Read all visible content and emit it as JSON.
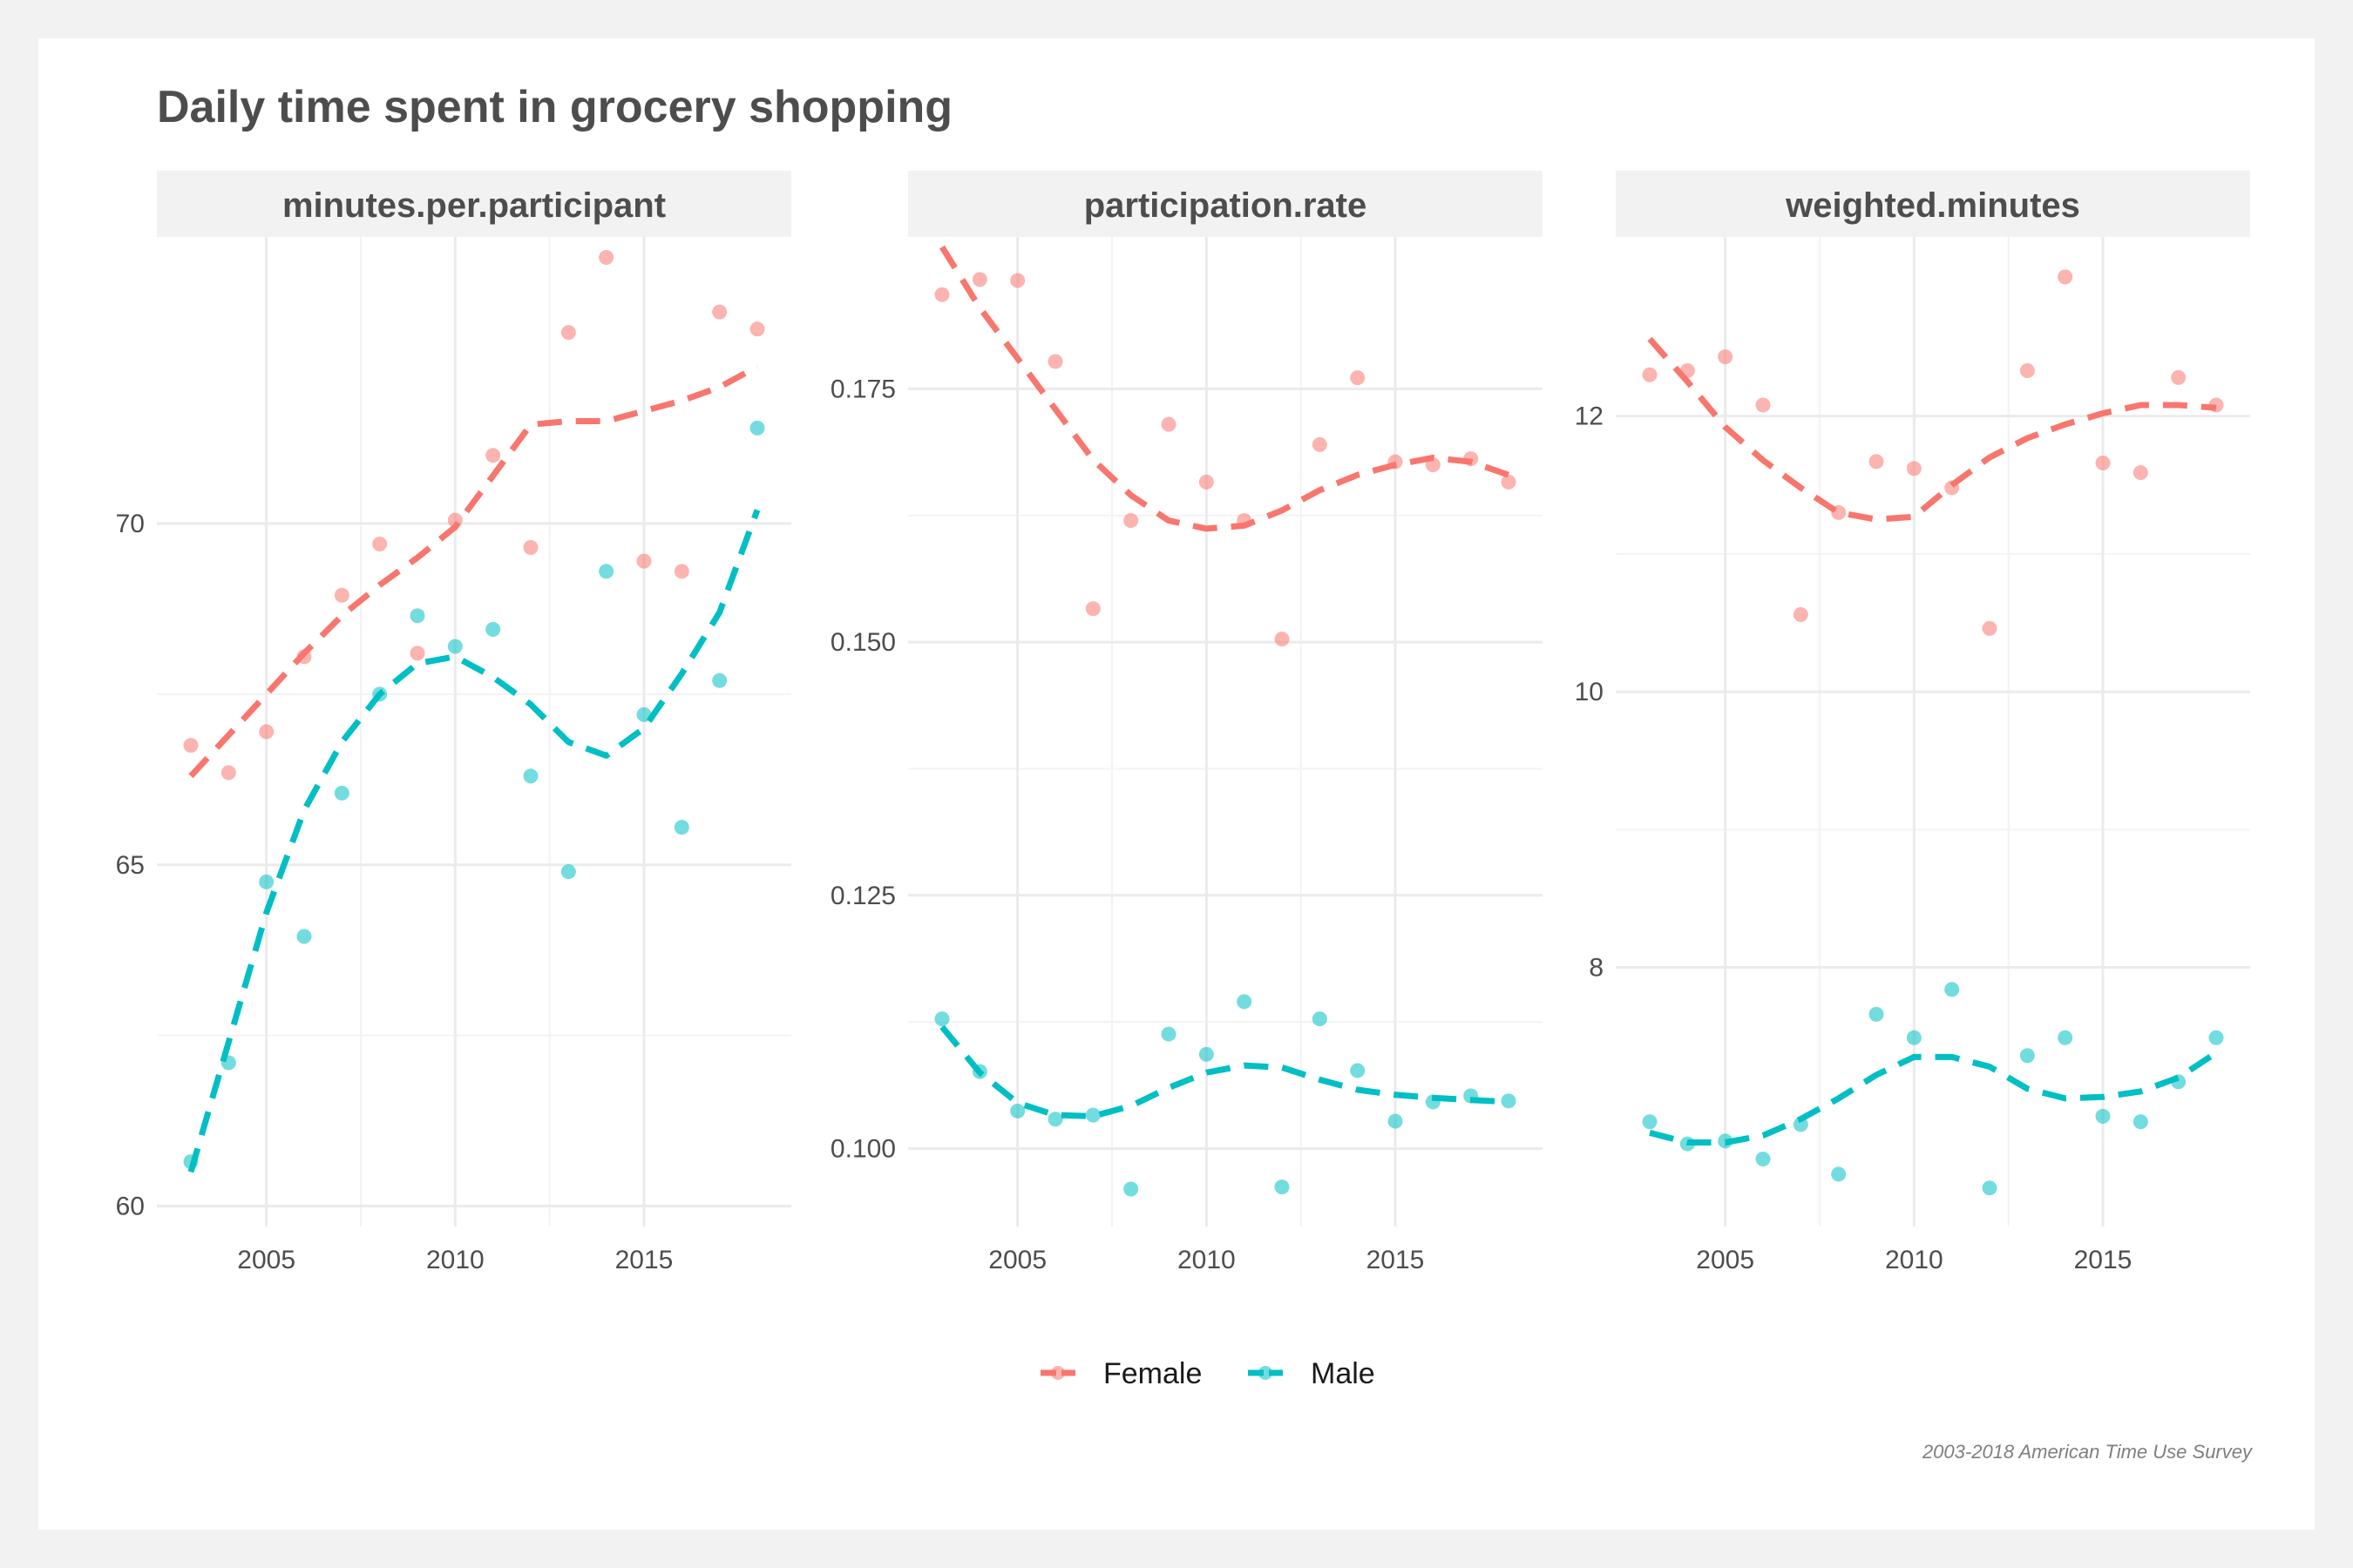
{
  "page": {
    "title": "Daily time spent in grocery shopping",
    "caption": "2003-2018 American Time Use Survey"
  },
  "colors": {
    "Female": "#f8766d",
    "Male": "#00bfc4",
    "strip_bg": "#f2f2f2",
    "grid": "#ebebeb"
  },
  "legend": [
    {
      "name": "Female",
      "color": "#f8766d"
    },
    {
      "name": "Male",
      "color": "#00bfc4"
    }
  ],
  "chart_data": [
    {
      "type": "scatter",
      "panel": "minutes.per.participant",
      "x_ticks": [
        2005,
        2010,
        2015
      ],
      "y_ticks": [
        60,
        65,
        70
      ],
      "xlim": [
        2002.1,
        2018.9
      ],
      "ylim": [
        59.7,
        74.2
      ],
      "x": [
        2003,
        2004,
        2005,
        2006,
        2007,
        2008,
        2009,
        2010,
        2011,
        2012,
        2013,
        2014,
        2015,
        2016,
        2017,
        2018
      ],
      "series": [
        {
          "name": "Female",
          "values": [
            66.75,
            66.35,
            66.95,
            68.05,
            68.95,
            69.7,
            68.1,
            70.05,
            71.0,
            69.65,
            72.8,
            73.9,
            69.45,
            69.3,
            73.1,
            72.85
          ],
          "trend": [
            66.3,
            66.9,
            67.5,
            68.1,
            68.65,
            69.1,
            69.5,
            69.95,
            70.7,
            71.45,
            71.5,
            71.5,
            71.65,
            71.8,
            72.0,
            72.3
          ]
        },
        {
          "name": "Male",
          "values": [
            60.65,
            62.1,
            64.75,
            63.95,
            66.05,
            67.5,
            68.65,
            68.2,
            68.45,
            66.3,
            64.9,
            69.3,
            67.2,
            65.55,
            67.7,
            71.4
          ],
          "trend": [
            60.5,
            62.4,
            64.3,
            65.8,
            66.8,
            67.5,
            67.95,
            68.05,
            67.75,
            67.35,
            66.8,
            66.6,
            67.0,
            67.8,
            68.7,
            70.2
          ]
        }
      ]
    },
    {
      "type": "scatter",
      "panel": "participation.rate",
      "x_ticks": [
        2005,
        2010,
        2015
      ],
      "y_ticks": [
        0.1,
        0.125,
        0.15,
        0.175
      ],
      "y_tick_labels": [
        "0.100",
        "0.125",
        "0.150",
        "0.175"
      ],
      "xlim": [
        2002.1,
        2018.9
      ],
      "ylim": [
        0.0923,
        0.19
      ],
      "x": [
        2003,
        2004,
        2005,
        2006,
        2007,
        2008,
        2009,
        2010,
        2011,
        2012,
        2013,
        2014,
        2015,
        2016,
        2017,
        2018
      ],
      "series": [
        {
          "name": "Female",
          "values": [
            0.1843,
            0.1858,
            0.1857,
            0.1777,
            0.1533,
            0.162,
            0.1715,
            0.1658,
            0.162,
            0.1503,
            0.1695,
            0.1761,
            0.1678,
            0.1675,
            0.1681,
            0.1658
          ],
          "trend": [
            0.189,
            0.183,
            0.178,
            0.173,
            0.168,
            0.1645,
            0.162,
            0.1612,
            0.1615,
            0.163,
            0.165,
            0.1665,
            0.1675,
            0.1682,
            0.1678,
            0.1665
          ]
        },
        {
          "name": "Male",
          "values": [
            0.1128,
            0.1076,
            0.1037,
            0.1029,
            0.1033,
            0.096,
            0.1113,
            0.1093,
            0.1145,
            0.0962,
            0.1128,
            0.1077,
            0.1027,
            0.1046,
            0.1052,
            0.1047
          ],
          "trend": [
            0.112,
            0.1075,
            0.1045,
            0.1033,
            0.1032,
            0.1042,
            0.106,
            0.1075,
            0.1082,
            0.108,
            0.1068,
            0.1058,
            0.1053,
            0.105,
            0.1048,
            0.1046
          ]
        }
      ]
    },
    {
      "type": "scatter",
      "panel": "weighted.minutes",
      "x_ticks": [
        2005,
        2010,
        2015
      ],
      "y_ticks": [
        8,
        10,
        12
      ],
      "xlim": [
        2002.1,
        2018.9
      ],
      "ylim": [
        6.12,
        13.3
      ],
      "x": [
        2003,
        2004,
        2005,
        2006,
        2007,
        2008,
        2009,
        2010,
        2011,
        2012,
        2013,
        2014,
        2015,
        2016,
        2017,
        2018
      ],
      "series": [
        {
          "name": "Female",
          "values": [
            12.3,
            12.33,
            12.43,
            12.08,
            10.56,
            11.3,
            11.67,
            11.62,
            11.48,
            10.46,
            12.33,
            13.01,
            11.66,
            11.59,
            12.28,
            12.08
          ],
          "trend": [
            12.56,
            12.25,
            11.92,
            11.68,
            11.48,
            11.3,
            11.25,
            11.27,
            11.5,
            11.7,
            11.84,
            11.94,
            12.02,
            12.08,
            12.08,
            12.06
          ]
        },
        {
          "name": "Male",
          "values": [
            6.88,
            6.72,
            6.74,
            6.61,
            6.86,
            6.5,
            7.66,
            7.49,
            7.84,
            6.4,
            7.36,
            7.49,
            6.92,
            6.88,
            7.17,
            7.49
          ],
          "trend": [
            6.8,
            6.73,
            6.73,
            6.78,
            6.9,
            7.05,
            7.22,
            7.35,
            7.35,
            7.28,
            7.12,
            7.05,
            7.06,
            7.1,
            7.2,
            7.38
          ]
        }
      ]
    }
  ]
}
